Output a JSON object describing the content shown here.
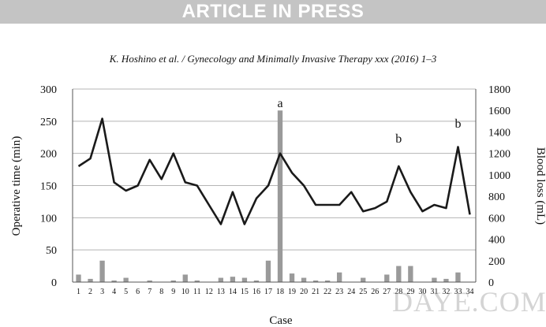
{
  "banner": {
    "text": "ARTICLE IN PRESS"
  },
  "citation": {
    "text": "K. Hoshino et al. / Gynecology and Minimally Invasive Therapy xxx (2016) 1–3"
  },
  "watermark": {
    "text": "DAYE.COM"
  },
  "colors": {
    "line": "#1a1a1a",
    "bar_fill": "#9a9a9a",
    "grid": "#b5b5b5",
    "banner": "#c4c4c4"
  },
  "chart_data": {
    "type": "line+bar",
    "xlabel": "Case",
    "ylabel_left": "Operative time (min)",
    "ylabel_right": "Blood loss (mL)",
    "ylim_left": [
      0,
      300
    ],
    "ylim_right": [
      0,
      1800
    ],
    "yticks_left": [
      0,
      50,
      100,
      150,
      200,
      250,
      300
    ],
    "yticks_right": [
      0,
      200,
      400,
      600,
      800,
      1000,
      1200,
      1400,
      1600,
      1800
    ],
    "grid": true,
    "categories": [
      "1",
      "2",
      "3",
      "4",
      "5",
      "6",
      "7",
      "8",
      "9",
      "10",
      "11",
      "12",
      "13",
      "14",
      "15",
      "16",
      "17",
      "18",
      "19",
      "20",
      "21",
      "22",
      "23",
      "24",
      "25",
      "26",
      "27",
      "28",
      "29",
      "30",
      "31",
      "32",
      "33",
      "34"
    ],
    "series": [
      {
        "axis": "left",
        "kind": "line",
        "values": [
          180,
          192,
          254,
          155,
          142,
          150,
          190,
          160,
          200,
          155,
          150,
          120,
          90,
          140,
          90,
          130,
          150,
          200,
          170,
          150,
          120,
          120,
          120,
          140,
          110,
          115,
          125,
          180,
          140,
          110,
          120,
          115,
          210,
          105
        ]
      },
      {
        "axis": "right",
        "kind": "bar",
        "values": [
          70,
          30,
          200,
          15,
          40,
          0,
          15,
          0,
          15,
          70,
          15,
          0,
          40,
          50,
          40,
          15,
          200,
          1600,
          80,
          40,
          15,
          15,
          90,
          0,
          40,
          0,
          70,
          150,
          150,
          0,
          40,
          30,
          90,
          0
        ]
      }
    ],
    "annotations": [
      {
        "text": "a",
        "category": "18",
        "value": 1630,
        "axis": "right"
      },
      {
        "text": "b",
        "category": "28",
        "value": 1300,
        "axis": "right"
      },
      {
        "text": "b",
        "category": "33",
        "value": 1440,
        "axis": "right"
      }
    ]
  }
}
